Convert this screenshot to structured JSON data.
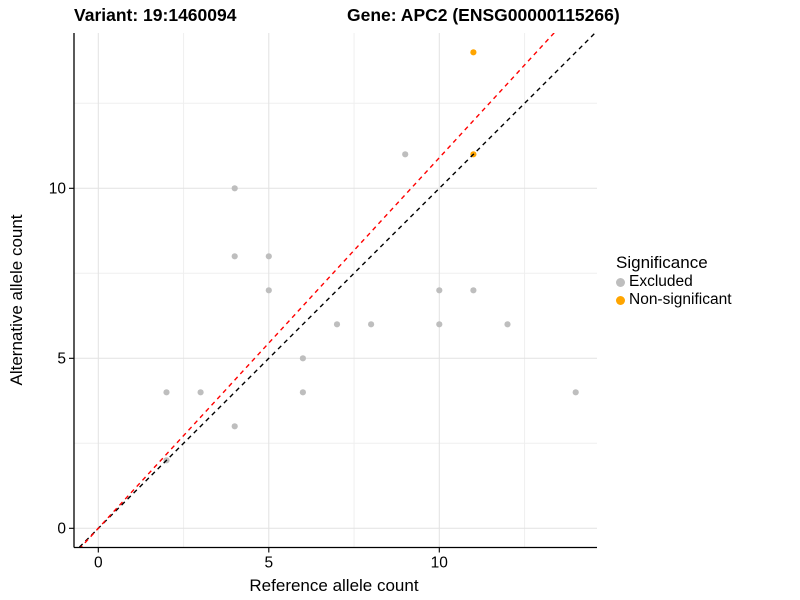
{
  "header": {
    "variant_title": "Variant: 19:1460094",
    "gene_title": "Gene: APC2 (ENSG00000115266)"
  },
  "chart_data": {
    "type": "scatter",
    "xlabel": "Reference allele count",
    "ylabel": "Alternative allele count",
    "xlim": [
      -0.73,
      14.66
    ],
    "ylim": [
      -0.57,
      14.57
    ],
    "xticks": [
      0,
      5,
      10
    ],
    "yticks": [
      0,
      5,
      10
    ],
    "minor_xticks": [
      2.5,
      7.5,
      12.5
    ],
    "minor_yticks": [
      2.5,
      7.5,
      12.5
    ],
    "grid": true,
    "colors": {
      "grid_major": "#E2E2E2",
      "grid_minor": "#EFEFEF",
      "axis": "#000000",
      "excluded": "#BEBEBE",
      "non_significant": "#FFA500",
      "identity_line": "#000000",
      "fit_line": "#FF0000"
    },
    "series": [
      {
        "name": "Excluded",
        "color": "#BEBEBE",
        "points": [
          [
            2,
            2
          ],
          [
            2,
            4
          ],
          [
            3,
            4
          ],
          [
            4,
            3
          ],
          [
            4,
            8
          ],
          [
            4,
            10
          ],
          [
            5,
            7
          ],
          [
            5,
            8
          ],
          [
            6,
            4
          ],
          [
            6,
            5
          ],
          [
            7,
            6
          ],
          [
            8,
            6
          ],
          [
            9,
            11
          ],
          [
            10,
            6
          ],
          [
            10,
            7
          ],
          [
            11,
            7
          ],
          [
            12,
            6
          ],
          [
            14,
            4
          ]
        ]
      },
      {
        "name": "Non-significant",
        "color": "#FFA500",
        "points": [
          [
            11,
            11
          ],
          [
            11,
            14
          ]
        ]
      }
    ],
    "ablines": [
      {
        "name": "identity-line",
        "slope": 1.0,
        "intercept": 0,
        "color": "#000000",
        "style": "dashed"
      },
      {
        "name": "fit-line",
        "slope": 1.09,
        "intercept": 0,
        "color": "#FF0000",
        "style": "dashed"
      }
    ],
    "legend": {
      "title": "Significance",
      "position": "right",
      "items": [
        {
          "label": "Excluded",
          "color": "#BEBEBE"
        },
        {
          "label": "Non-significant",
          "color": "#FFA500"
        }
      ]
    }
  }
}
